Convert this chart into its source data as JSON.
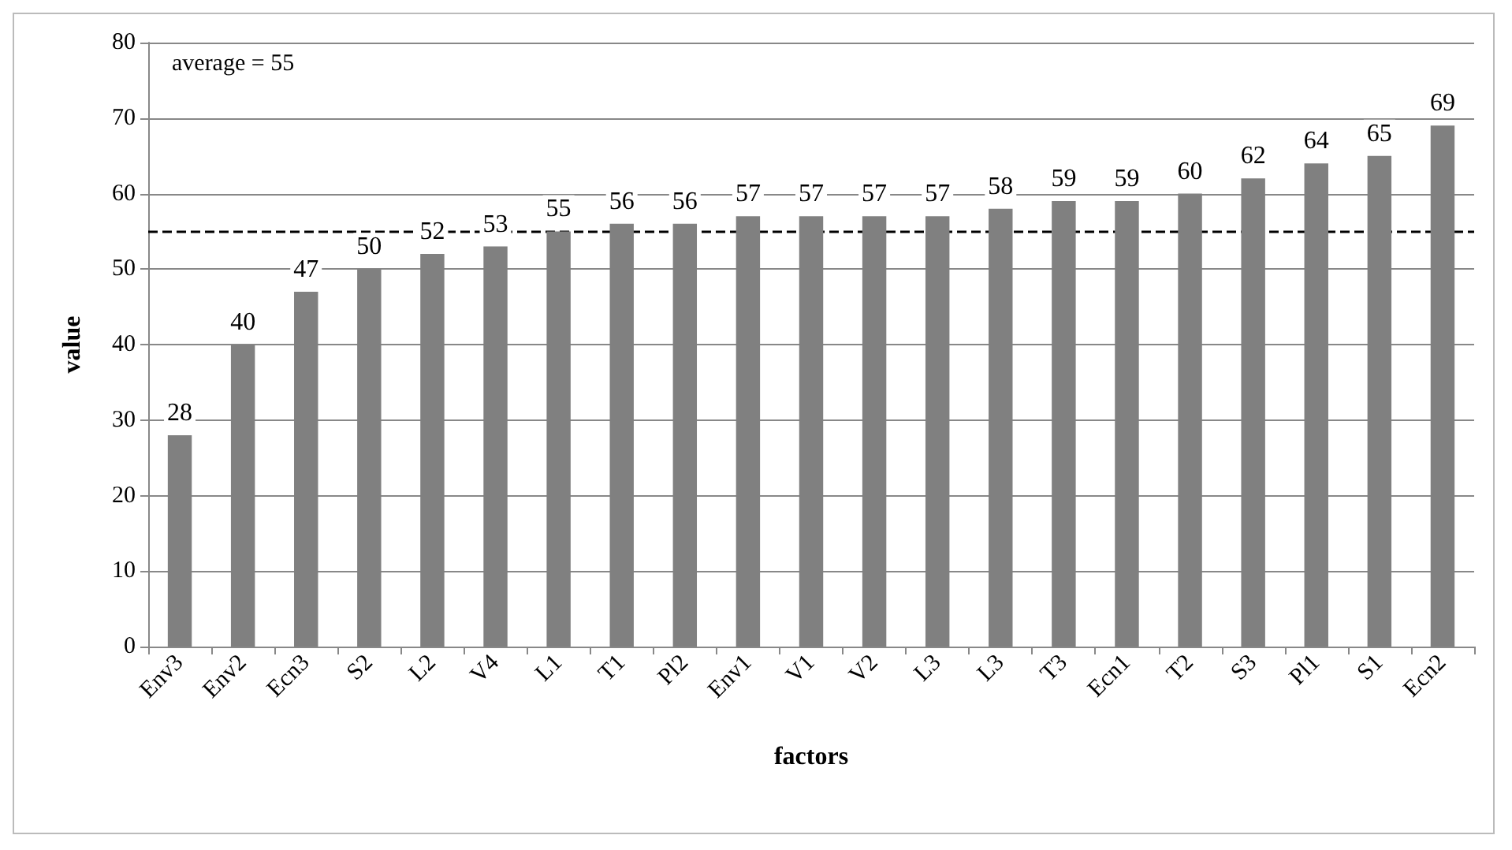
{
  "chart_data": {
    "type": "bar",
    "xlabel": "factors",
    "ylabel": "value",
    "categories": [
      "Env3",
      "Env2",
      "Ecn3",
      "S2",
      "L2",
      "V4",
      "L1",
      "T1",
      "Pl2",
      "Env1",
      "V1",
      "V2",
      "L3",
      "L3",
      "T3",
      "Ecn1",
      "T2",
      "S3",
      "Pl1",
      "S1",
      "Ecn2"
    ],
    "values": [
      28,
      40,
      47,
      50,
      52,
      53,
      55,
      56,
      56,
      57,
      57,
      57,
      57,
      58,
      59,
      59,
      60,
      62,
      64,
      65,
      69
    ],
    "color": "#808080",
    "ylim": [
      0,
      80
    ],
    "yticks": [
      0,
      10,
      20,
      30,
      40,
      50,
      60,
      70,
      80
    ],
    "grid": "y",
    "data_labels": true,
    "ref_lines": [
      {
        "axis": "y",
        "value": 55,
        "color": "#000000",
        "line_style": "dashed"
      }
    ],
    "annotations": [
      "average = 55"
    ]
  }
}
